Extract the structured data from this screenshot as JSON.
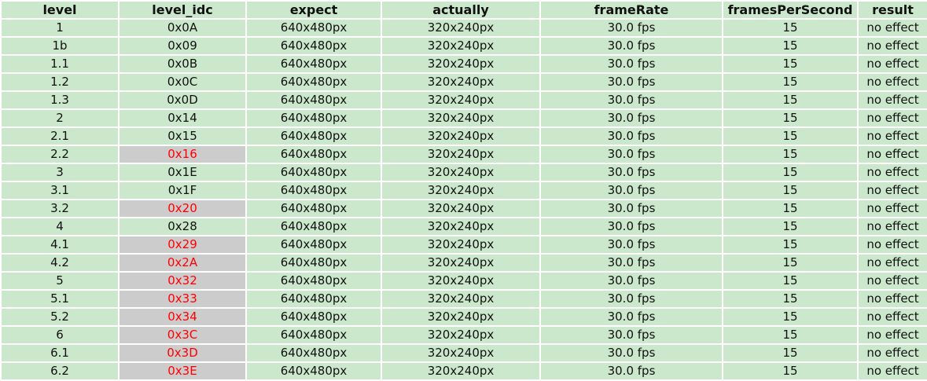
{
  "table": {
    "headers": [
      "level",
      "level_idc",
      "expect",
      "actually",
      "frameRate",
      "framesPerSecond",
      "result"
    ],
    "rows": [
      {
        "level": "1",
        "level_idc": "0x0A",
        "flag": false,
        "expect": "640x480px",
        "actually": "320x240px",
        "frameRate": "30.0 fps",
        "framesPerSecond": "15",
        "result": "no effect"
      },
      {
        "level": "1b",
        "level_idc": "0x09",
        "flag": false,
        "expect": "640x480px",
        "actually": "320x240px",
        "frameRate": "30.0 fps",
        "framesPerSecond": "15",
        "result": "no effect"
      },
      {
        "level": "1.1",
        "level_idc": "0x0B",
        "flag": false,
        "expect": "640x480px",
        "actually": "320x240px",
        "frameRate": "30.0 fps",
        "framesPerSecond": "15",
        "result": "no effect"
      },
      {
        "level": "1.2",
        "level_idc": "0x0C",
        "flag": false,
        "expect": "640x480px",
        "actually": "320x240px",
        "frameRate": "30.0 fps",
        "framesPerSecond": "15",
        "result": "no effect"
      },
      {
        "level": "1.3",
        "level_idc": "0x0D",
        "flag": false,
        "expect": "640x480px",
        "actually": "320x240px",
        "frameRate": "30.0 fps",
        "framesPerSecond": "15",
        "result": "no effect"
      },
      {
        "level": "2",
        "level_idc": "0x14",
        "flag": false,
        "expect": "640x480px",
        "actually": "320x240px",
        "frameRate": "30.0 fps",
        "framesPerSecond": "15",
        "result": "no effect"
      },
      {
        "level": "2.1",
        "level_idc": "0x15",
        "flag": false,
        "expect": "640x480px",
        "actually": "320x240px",
        "frameRate": "30.0 fps",
        "framesPerSecond": "15",
        "result": "no effect"
      },
      {
        "level": "2.2",
        "level_idc": "0x16",
        "flag": true,
        "expect": "640x480px",
        "actually": "320x240px",
        "frameRate": "30.0 fps",
        "framesPerSecond": "15",
        "result": "no effect"
      },
      {
        "level": "3",
        "level_idc": "0x1E",
        "flag": false,
        "expect": "640x480px",
        "actually": "320x240px",
        "frameRate": "30.0 fps",
        "framesPerSecond": "15",
        "result": "no effect"
      },
      {
        "level": "3.1",
        "level_idc": "0x1F",
        "flag": false,
        "expect": "640x480px",
        "actually": "320x240px",
        "frameRate": "30.0 fps",
        "framesPerSecond": "15",
        "result": "no effect"
      },
      {
        "level": "3.2",
        "level_idc": "0x20",
        "flag": true,
        "expect": "640x480px",
        "actually": "320x240px",
        "frameRate": "30.0 fps",
        "framesPerSecond": "15",
        "result": "no effect"
      },
      {
        "level": "4",
        "level_idc": "0x28",
        "flag": false,
        "expect": "640x480px",
        "actually": "320x240px",
        "frameRate": "30.0 fps",
        "framesPerSecond": "15",
        "result": "no effect"
      },
      {
        "level": "4.1",
        "level_idc": "0x29",
        "flag": true,
        "expect": "640x480px",
        "actually": "320x240px",
        "frameRate": "30.0 fps",
        "framesPerSecond": "15",
        "result": "no effect"
      },
      {
        "level": "4.2",
        "level_idc": "0x2A",
        "flag": true,
        "expect": "640x480px",
        "actually": "320x240px",
        "frameRate": "30.0 fps",
        "framesPerSecond": "15",
        "result": "no effect"
      },
      {
        "level": "5",
        "level_idc": "0x32",
        "flag": true,
        "expect": "640x480px",
        "actually": "320x240px",
        "frameRate": "30.0 fps",
        "framesPerSecond": "15",
        "result": "no effect"
      },
      {
        "level": "5.1",
        "level_idc": "0x33",
        "flag": true,
        "expect": "640x480px",
        "actually": "320x240px",
        "frameRate": "30.0 fps",
        "framesPerSecond": "15",
        "result": "no effect"
      },
      {
        "level": "5.2",
        "level_idc": "0x34",
        "flag": true,
        "expect": "640x480px",
        "actually": "320x240px",
        "frameRate": "30.0 fps",
        "framesPerSecond": "15",
        "result": "no effect"
      },
      {
        "level": "6",
        "level_idc": "0x3C",
        "flag": true,
        "expect": "640x480px",
        "actually": "320x240px",
        "frameRate": "30.0 fps",
        "framesPerSecond": "15",
        "result": "no effect"
      },
      {
        "level": "6.1",
        "level_idc": "0x3D",
        "flag": true,
        "expect": "640x480px",
        "actually": "320x240px",
        "frameRate": "30.0 fps",
        "framesPerSecond": "15",
        "result": "no effect"
      },
      {
        "level": "6.2",
        "level_idc": "0x3E",
        "flag": true,
        "expect": "640x480px",
        "actually": "320x240px",
        "frameRate": "30.0 fps",
        "framesPerSecond": "15",
        "result": "no effect"
      }
    ]
  },
  "colors": {
    "cell_background": "#cce8cc",
    "flagged_background": "#cccccc",
    "flagged_text": "#ff0000",
    "text": "#111111"
  }
}
